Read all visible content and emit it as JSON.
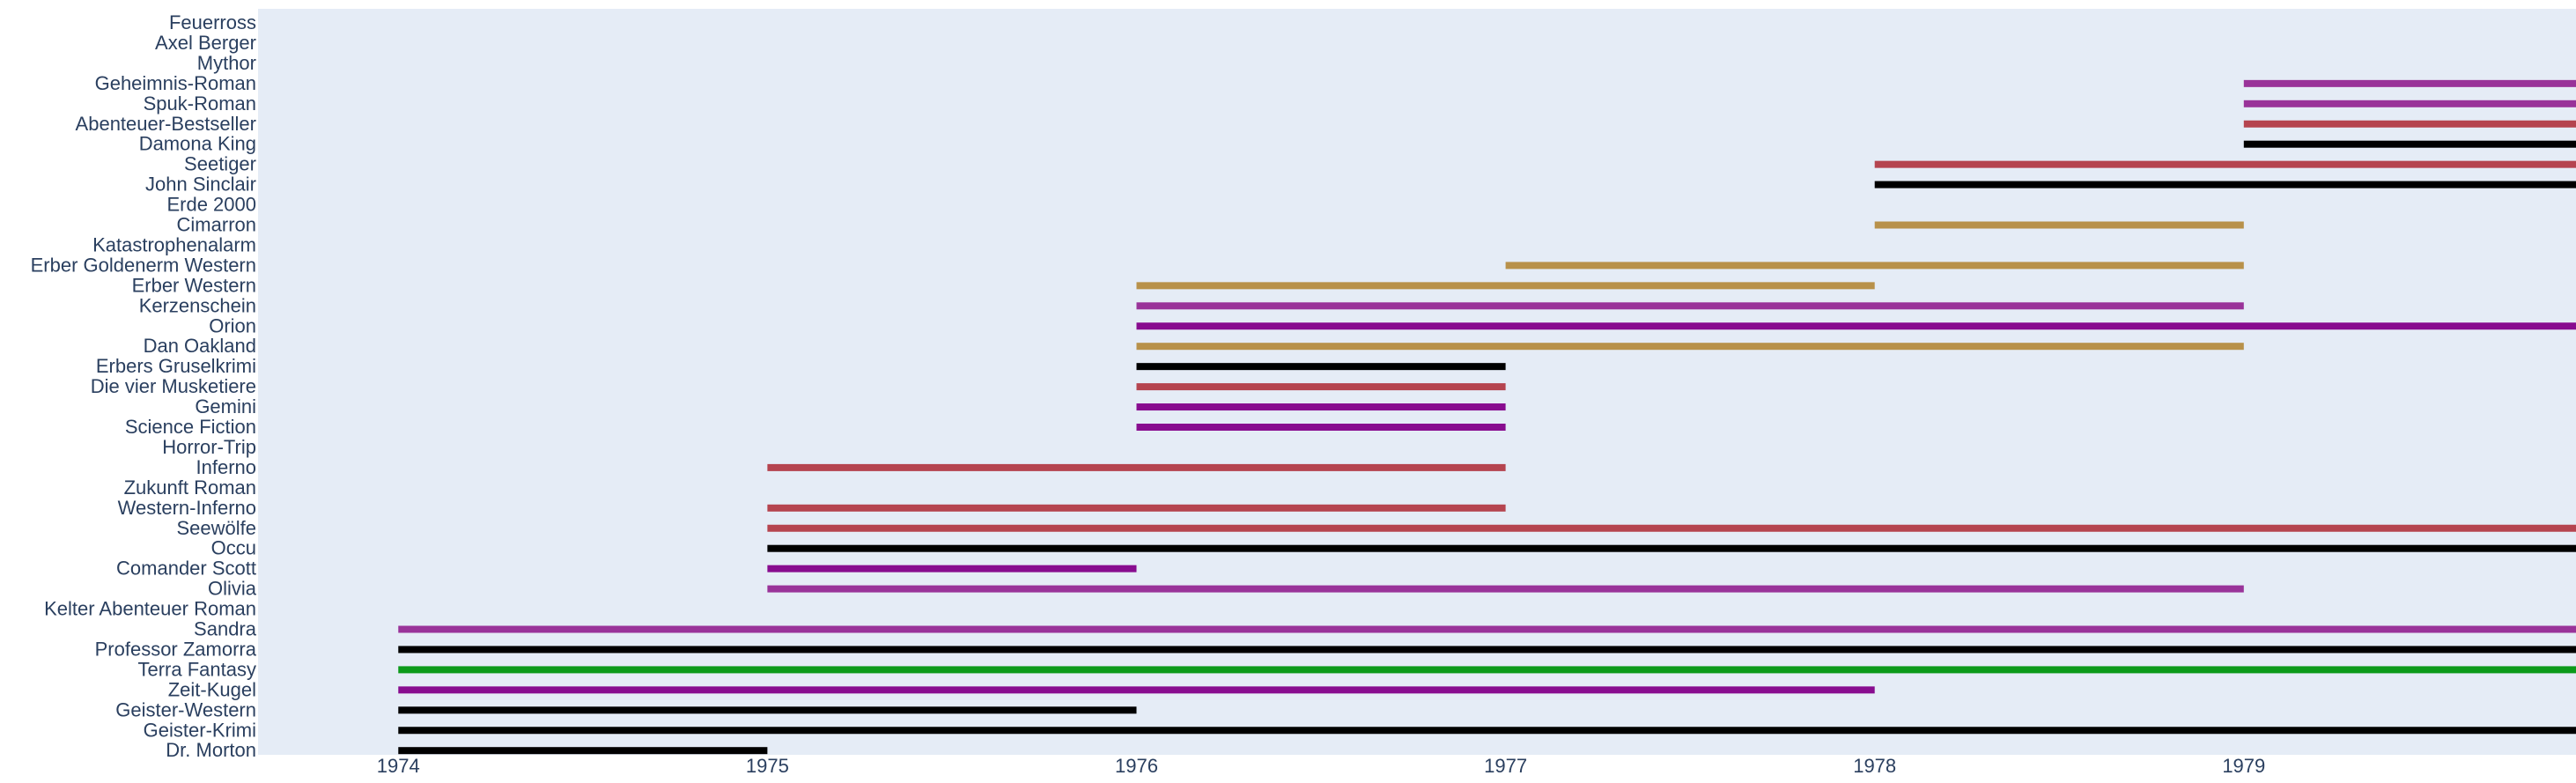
{
  "chart_data": {
    "type": "timeline",
    "title": "",
    "xlabel": "",
    "ylabel": "",
    "xlim": [
      1973.62,
      1979.9
    ],
    "x_ticks": [
      "1974",
      "1975",
      "1976",
      "1977",
      "1978",
      "1979"
    ],
    "grid": false,
    "legend": "none",
    "colors": {
      "plot_background": "#e5ecf6",
      "page_background": "#ffffff",
      "tick_text": "#2a3f5f"
    },
    "categories": [
      "Feuerross",
      "Axel Berger",
      "Mythor",
      "Geheimnis-Roman",
      "Spuk-Roman",
      "Abenteuer-Bestseller",
      "Damona King",
      "Seetiger",
      "John Sinclair",
      "Erde 2000",
      "Cimarron",
      "Katastrophenalarm",
      "Erber Goldenerm Western",
      "Erber Western",
      "Kerzenschein",
      "Orion",
      "Dan Oakland",
      "Erbers Gruselkrimi",
      "Die vier Musketiere",
      "Gemini",
      "Science Fiction",
      "Horror-Trip",
      "Inferno",
      "Zukunft Roman",
      "Western-Inferno",
      "Seewölfe",
      "Occu",
      "Comander Scott",
      "Olivia",
      "Kelter Abenteuer Roman",
      "Sandra",
      "Professor Zamorra",
      "Terra Fantasy",
      "Zeit-Kugel",
      "Geister-Western",
      "Geister-Krimi",
      "Dr. Morton"
    ],
    "bars": [
      {
        "category": "Geheimnis-Roman",
        "start": 1979,
        "end": 1979.9,
        "color": "#993399"
      },
      {
        "category": "Spuk-Roman",
        "start": 1979,
        "end": 1979.9,
        "color": "#993399"
      },
      {
        "category": "Abenteuer-Bestseller",
        "start": 1979,
        "end": 1979.9,
        "color": "#b5444f"
      },
      {
        "category": "Damona King",
        "start": 1979,
        "end": 1979.9,
        "color": "#000000"
      },
      {
        "category": "Seetiger",
        "start": 1978,
        "end": 1979.9,
        "color": "#b5444f"
      },
      {
        "category": "John Sinclair",
        "start": 1978,
        "end": 1979.9,
        "color": "#000000"
      },
      {
        "category": "Cimarron",
        "start": 1978,
        "end": 1979,
        "color": "#b8914a"
      },
      {
        "category": "Erber Goldenerm Western",
        "start": 1977,
        "end": 1979,
        "color": "#b8914a"
      },
      {
        "category": "Erber Western",
        "start": 1976,
        "end": 1978,
        "color": "#b8914a"
      },
      {
        "category": "Kerzenschein",
        "start": 1976,
        "end": 1979,
        "color": "#993399"
      },
      {
        "category": "Orion",
        "start": 1976,
        "end": 1979.9,
        "color": "#880c8f"
      },
      {
        "category": "Dan Oakland",
        "start": 1976,
        "end": 1979,
        "color": "#b8914a"
      },
      {
        "category": "Erbers Gruselkrimi",
        "start": 1976,
        "end": 1977,
        "color": "#000000"
      },
      {
        "category": "Die vier Musketiere",
        "start": 1976,
        "end": 1977,
        "color": "#b5444f"
      },
      {
        "category": "Gemini",
        "start": 1976,
        "end": 1977,
        "color": "#880c8f"
      },
      {
        "category": "Science Fiction",
        "start": 1976,
        "end": 1977,
        "color": "#880c8f"
      },
      {
        "category": "Inferno",
        "start": 1975,
        "end": 1977,
        "color": "#b5444f"
      },
      {
        "category": "Western-Inferno",
        "start": 1975,
        "end": 1977,
        "color": "#b5444f"
      },
      {
        "category": "Seewölfe",
        "start": 1975,
        "end": 1979.9,
        "color": "#b5444f"
      },
      {
        "category": "Occu",
        "start": 1975,
        "end": 1979.9,
        "color": "#000000"
      },
      {
        "category": "Comander Scott",
        "start": 1975,
        "end": 1976,
        "color": "#880c8f"
      },
      {
        "category": "Olivia",
        "start": 1975,
        "end": 1979,
        "color": "#993399"
      },
      {
        "category": "Sandra",
        "start": 1974,
        "end": 1979.9,
        "color": "#993399"
      },
      {
        "category": "Professor Zamorra",
        "start": 1974,
        "end": 1979.9,
        "color": "#000000"
      },
      {
        "category": "Terra Fantasy",
        "start": 1974,
        "end": 1979.9,
        "color": "#0c9a1a"
      },
      {
        "category": "Zeit-Kugel",
        "start": 1974,
        "end": 1978,
        "color": "#880c8f"
      },
      {
        "category": "Geister-Western",
        "start": 1974,
        "end": 1976,
        "color": "#000000"
      },
      {
        "category": "Geister-Krimi",
        "start": 1974,
        "end": 1979.9,
        "color": "#000000"
      },
      {
        "category": "Dr. Morton",
        "start": 1974,
        "end": 1975,
        "color": "#000000"
      }
    ]
  }
}
